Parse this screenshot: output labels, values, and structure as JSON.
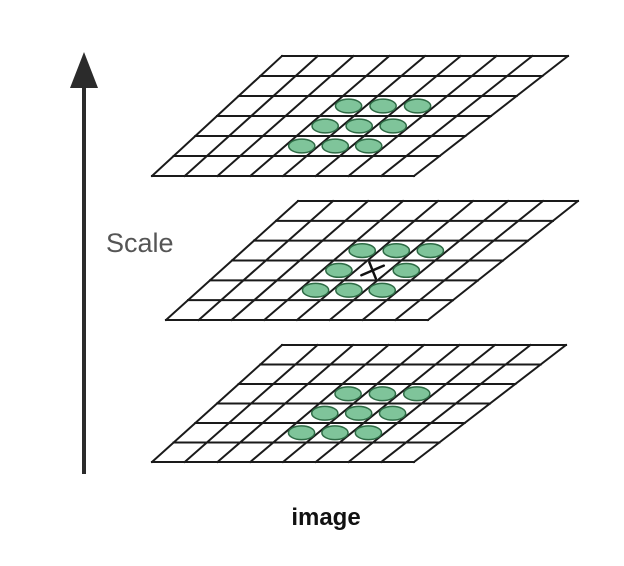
{
  "diagram": {
    "axis_label": "Scale",
    "caption": "image",
    "axis_direction": "up",
    "grid": {
      "columns": 8,
      "rows": 6
    },
    "layers": [
      {
        "id": "top",
        "center_marker": false,
        "neighbors": 9
      },
      {
        "id": "middle",
        "center_marker": true,
        "neighbors": 8
      },
      {
        "id": "bottom",
        "center_marker": false,
        "neighbors": 9
      }
    ],
    "colors": {
      "grid": "#1a1a1a",
      "blob_fill": "#7fc49a",
      "blob_stroke": "#2e6b45",
      "arrow": "#2b2b2b",
      "label": "#555555"
    }
  }
}
